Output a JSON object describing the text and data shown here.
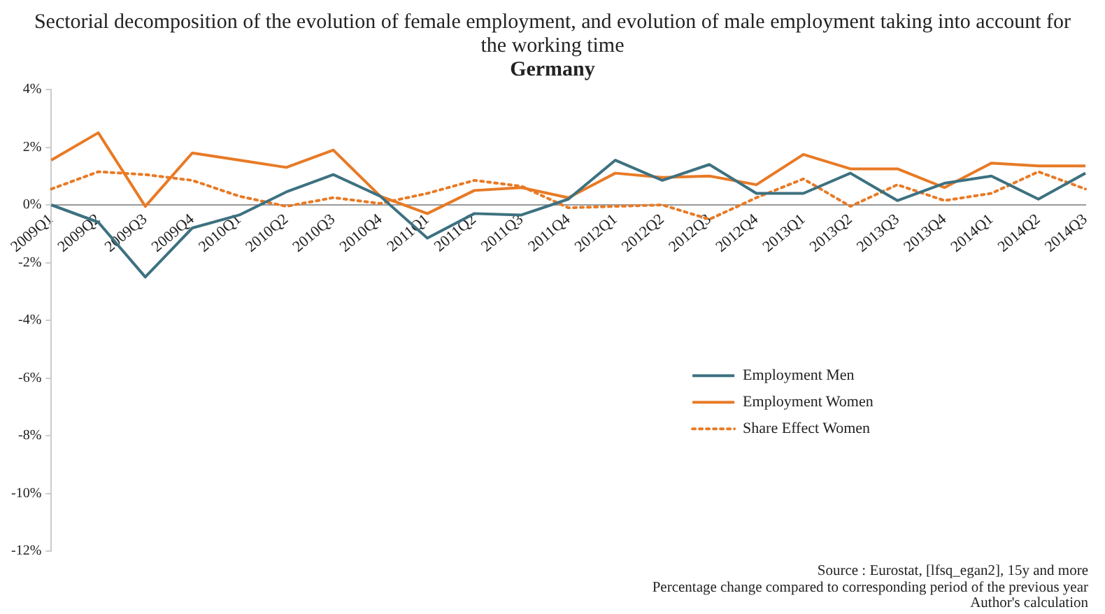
{
  "chart_data": {
    "type": "line",
    "title": "Sectorial decomposition of the evolution of female employment, and evolution of male employment taking into account  for the working time",
    "subtitle": "Germany",
    "categories": [
      "2009Q1",
      "2009Q2",
      "2009Q3",
      "2009Q4",
      "2010Q1",
      "2010Q2",
      "2010Q3",
      "2010Q4",
      "2011Q1",
      "2011Q2",
      "2011Q3",
      "2011Q4",
      "2012Q1",
      "2012Q2",
      "2012Q3",
      "2012Q4",
      "2013Q1",
      "2013Q2",
      "2013Q3",
      "2013Q4",
      "2014Q1",
      "2014Q2",
      "2014Q3"
    ],
    "series": [
      {
        "name": "Employment Men",
        "color": "#3d7180",
        "line_style": "solid",
        "values": [
          0,
          -0.6,
          -2.5,
          -0.8,
          -0.35,
          0.45,
          1.05,
          0.3,
          -1.15,
          -0.3,
          -0.35,
          0.2,
          1.55,
          0.85,
          1.4,
          0.4,
          0.4,
          1.1,
          0.15,
          0.75,
          1.0,
          0.2,
          1.1
        ]
      },
      {
        "name": "Employment Women",
        "color": "#e87a25",
        "line_style": "solid",
        "values": [
          1.55,
          2.5,
          -0.05,
          1.8,
          1.55,
          1.3,
          1.9,
          0.3,
          -0.3,
          0.5,
          0.6,
          0.25,
          1.1,
          0.95,
          1.0,
          0.7,
          1.75,
          1.25,
          1.25,
          0.6,
          1.45,
          1.35,
          1.35
        ]
      },
      {
        "name": "Share Effect Women",
        "color": "#e87a25",
        "line_style": "dotted",
        "values": [
          0.55,
          1.15,
          1.05,
          0.85,
          0.3,
          -0.05,
          0.25,
          0.05,
          0.4,
          0.85,
          0.65,
          -0.1,
          -0.05,
          0,
          -0.5,
          0.25,
          0.9,
          -0.05,
          0.7,
          0.15,
          0.4,
          1.15,
          0.55
        ]
      }
    ],
    "ylim": [
      -12,
      4
    ],
    "yticks": [
      {
        "value": -12,
        "label": "-12%"
      },
      {
        "value": -10,
        "label": "-10%"
      },
      {
        "value": -8,
        "label": "-8%"
      },
      {
        "value": -6,
        "label": "-6%"
      },
      {
        "value": -4,
        "label": "-4%"
      },
      {
        "value": -2,
        "label": "-2%"
      },
      {
        "value": 0,
        "label": "0%"
      },
      {
        "value": 2,
        "label": "2%"
      },
      {
        "value": 4,
        "label": "4%"
      }
    ],
    "grid": false,
    "legend": "right",
    "marker": "none",
    "annotations": [
      "Source : Eurostat, [lfsq_egan2], 15y and more",
      "Percentage change compared to corresponding period of the previous year",
      "Author's calculation"
    ]
  }
}
